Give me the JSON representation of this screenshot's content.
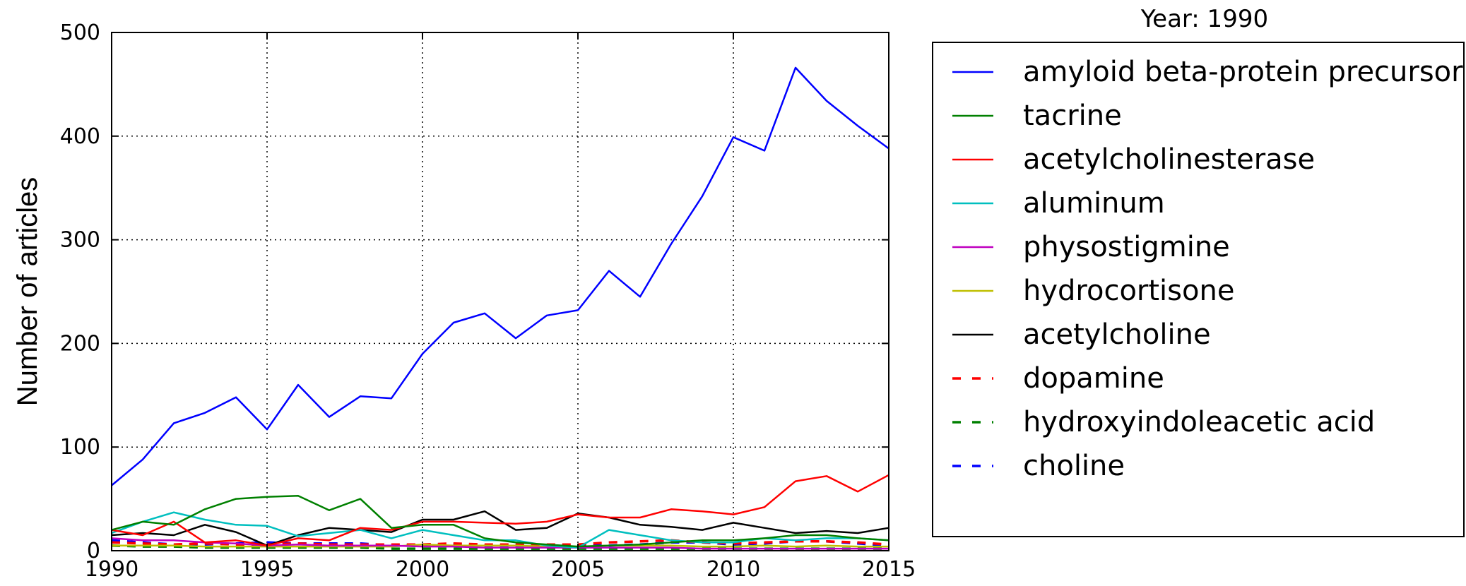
{
  "chart_data": {
    "type": "line",
    "title": "Year: 1990",
    "xlabel": "",
    "ylabel": "Number of articles",
    "xlim": [
      1990,
      2015
    ],
    "ylim": [
      0,
      500
    ],
    "xticks": [
      1990,
      1995,
      2000,
      2005,
      2010,
      2015
    ],
    "yticks": [
      0,
      100,
      200,
      300,
      400,
      500
    ],
    "grid": true,
    "legend_position": "outside-right",
    "x": [
      1990,
      1991,
      1992,
      1993,
      1994,
      1995,
      1996,
      1997,
      1998,
      1999,
      2000,
      2001,
      2002,
      2003,
      2004,
      2005,
      2006,
      2007,
      2008,
      2009,
      2010,
      2011,
      2012,
      2013,
      2014,
      2015
    ],
    "series": [
      {
        "name": "amyloid beta-protein precursor",
        "color": "#0000ff",
        "style": "solid",
        "values": [
          63,
          88,
          123,
          133,
          148,
          117,
          160,
          129,
          149,
          147,
          190,
          220,
          229,
          205,
          227,
          232,
          270,
          245,
          296,
          342,
          399,
          386,
          466,
          434,
          410,
          388
        ]
      },
      {
        "name": "tacrine",
        "color": "#008000",
        "style": "solid",
        "values": [
          20,
          28,
          25,
          40,
          50,
          52,
          53,
          39,
          50,
          22,
          25,
          25,
          12,
          8,
          6,
          4,
          5,
          6,
          8,
          10,
          10,
          12,
          15,
          15,
          12,
          10
        ]
      },
      {
        "name": "acetylcholinesterase",
        "color": "#ff0000",
        "style": "solid",
        "values": [
          20,
          15,
          28,
          8,
          10,
          5,
          12,
          10,
          22,
          20,
          28,
          28,
          27,
          26,
          28,
          35,
          32,
          32,
          40,
          38,
          35,
          42,
          67,
          72,
          57,
          73
        ]
      },
      {
        "name": "aluminum",
        "color": "#00bfbf",
        "style": "solid",
        "values": [
          17,
          28,
          37,
          30,
          25,
          24,
          14,
          17,
          20,
          12,
          20,
          15,
          10,
          10,
          5,
          3,
          20,
          15,
          10,
          8,
          8,
          12,
          10,
          12,
          12,
          10
        ]
      },
      {
        "name": "physostigmine",
        "color": "#bf00bf",
        "style": "solid",
        "values": [
          12,
          10,
          10,
          8,
          7,
          5,
          6,
          5,
          5,
          5,
          4,
          4,
          3,
          3,
          3,
          3,
          3,
          3,
          3,
          2,
          2,
          2,
          2,
          2,
          2,
          2
        ]
      },
      {
        "name": "hydrocortisone",
        "color": "#bfbf00",
        "style": "solid",
        "values": [
          5,
          5,
          5,
          4,
          4,
          4,
          4,
          4,
          4,
          4,
          6,
          5,
          5,
          5,
          4,
          4,
          5,
          5,
          5,
          4,
          4,
          5,
          4,
          5,
          4,
          4
        ]
      },
      {
        "name": "acetylcholine",
        "color": "#000000",
        "style": "solid",
        "values": [
          15,
          17,
          15,
          25,
          18,
          5,
          15,
          22,
          20,
          18,
          30,
          30,
          38,
          20,
          22,
          36,
          32,
          25,
          23,
          20,
          27,
          22,
          17,
          19,
          17,
          22
        ]
      },
      {
        "name": "dopamine",
        "color": "#ff0000",
        "style": "dashed",
        "values": [
          8,
          7,
          6,
          7,
          6,
          6,
          7,
          6,
          6,
          6,
          6,
          7,
          6,
          6,
          6,
          6,
          8,
          9,
          10,
          8,
          7,
          8,
          9,
          9,
          8,
          6
        ]
      },
      {
        "name": "hydroxyindoleacetic acid",
        "color": "#008000",
        "style": "dashed",
        "values": [
          5,
          4,
          4,
          3,
          3,
          3,
          3,
          3,
          3,
          2,
          2,
          2,
          2,
          2,
          2,
          2,
          2,
          2,
          2,
          2,
          2,
          2,
          2,
          2,
          2,
          2
        ]
      },
      {
        "name": "choline",
        "color": "#0000ff",
        "style": "dashed",
        "values": [
          10,
          8,
          6,
          6,
          7,
          8,
          7,
          7,
          7,
          5,
          6,
          6,
          5,
          5,
          5,
          5,
          5,
          6,
          8,
          8,
          6,
          7,
          9,
          9,
          7,
          5
        ]
      }
    ]
  }
}
